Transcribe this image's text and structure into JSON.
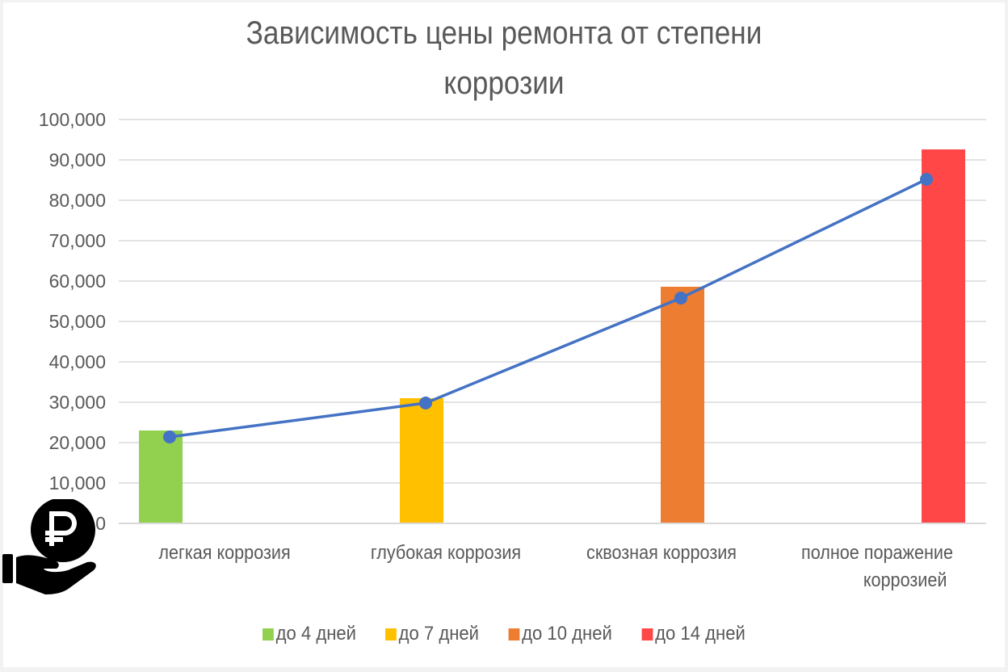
{
  "chart": {
    "title_line1": "Зависимость цены ремонта от степени",
    "title_line2": "коррозии",
    "y_ticks": [
      "100,000",
      "90,000",
      "80,000",
      "70,000",
      "60,000",
      "50,000",
      "40,000",
      "30,000",
      "20,000",
      "10,000",
      "0"
    ],
    "x_labels": [
      {
        "line1": "легкая коррозия",
        "line2": ""
      },
      {
        "line1": "глубокая коррозия",
        "line2": ""
      },
      {
        "line1": "сквозная коррозия",
        "line2": ""
      },
      {
        "line1": "полное поражение",
        "line2": "коррозией"
      }
    ],
    "legend": [
      {
        "label": "до 4 дней",
        "color": "#92d050"
      },
      {
        "label": "до 7 дней",
        "color": "#ffc000"
      },
      {
        "label": "до 10 дней",
        "color": "#ed7d31"
      },
      {
        "label": "до 14 дней",
        "color": "#ff4747"
      }
    ],
    "line_color": "#4472c4",
    "icon": "ruble-coin-in-hand-icon"
  },
  "chart_data": {
    "type": "bar",
    "title": "Зависимость цены ремонта от степени коррозии",
    "xlabel": "",
    "ylabel": "",
    "ylim": [
      0,
      100000
    ],
    "y_tick_step": 10000,
    "grid": true,
    "legend_position": "bottom",
    "categories": [
      "легкая коррозия",
      "глубокая коррозия",
      "сквозная коррозия",
      "полное поражение коррозией"
    ],
    "series": [
      {
        "name": "до 4 дней",
        "kind": "bar",
        "color": "#92d050",
        "values": [
          23000,
          null,
          null,
          null
        ]
      },
      {
        "name": "до 7 дней",
        "kind": "bar",
        "color": "#ffc000",
        "values": [
          null,
          31000,
          null,
          null
        ]
      },
      {
        "name": "до 10 дней",
        "kind": "bar",
        "color": "#ed7d31",
        "values": [
          null,
          null,
          58600,
          null
        ]
      },
      {
        "name": "до 14 дней",
        "kind": "bar",
        "color": "#ff4747",
        "values": [
          null,
          null,
          null,
          92600
        ]
      },
      {
        "name": "trend",
        "kind": "line",
        "color": "#4472c4",
        "values": [
          21400,
          29800,
          55800,
          85200
        ]
      }
    ]
  }
}
